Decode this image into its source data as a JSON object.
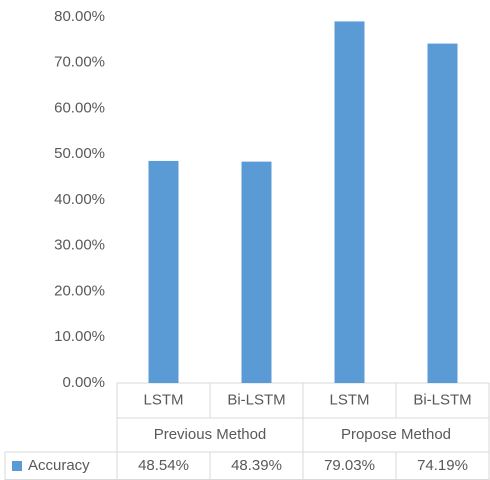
{
  "chart_data": {
    "type": "bar",
    "categories": [
      "LSTM",
      "Bi-LSTM",
      "LSTM",
      "Bi-LSTM"
    ],
    "groups": [
      "Previous Method",
      "Propose Method"
    ],
    "series": [
      {
        "name": "Accuracy",
        "color": "#5b9bd5",
        "values": [
          48.54,
          48.39,
          79.03,
          74.19
        ],
        "value_labels": [
          "48.54%",
          "48.39%",
          "79.03%",
          "74.19%"
        ]
      }
    ],
    "ylim": [
      0,
      80
    ],
    "yticks": [
      {
        "value": 0,
        "label": "0.00%"
      },
      {
        "value": 10,
        "label": "10.00%"
      },
      {
        "value": 20,
        "label": "20.00%"
      },
      {
        "value": 30,
        "label": "30.00%"
      },
      {
        "value": 40,
        "label": "40.00%"
      },
      {
        "value": 50,
        "label": "50.00%"
      },
      {
        "value": 60,
        "label": "60.00%"
      },
      {
        "value": 70,
        "label": "70.00%"
      },
      {
        "value": 80,
        "label": "80.00%"
      }
    ],
    "grid": false
  }
}
